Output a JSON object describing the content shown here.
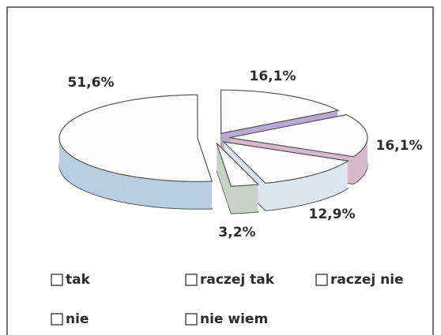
{
  "chart_data": {
    "type": "pie3d",
    "categories": [
      "tak",
      "raczej tak",
      "raczej nie",
      "nie",
      "nie wiem"
    ],
    "values": [
      51.6,
      16.1,
      16.1,
      12.9,
      3.2
    ],
    "value_labels": [
      "51,6%",
      "16,1%",
      "16,1%",
      "12,9%",
      "3,2%"
    ],
    "colors": [
      "#b9cde3",
      "#b7abd6",
      "#d8b9cc",
      "#dde5ef",
      "#c9d2c6"
    ],
    "legend": "bottom"
  }
}
